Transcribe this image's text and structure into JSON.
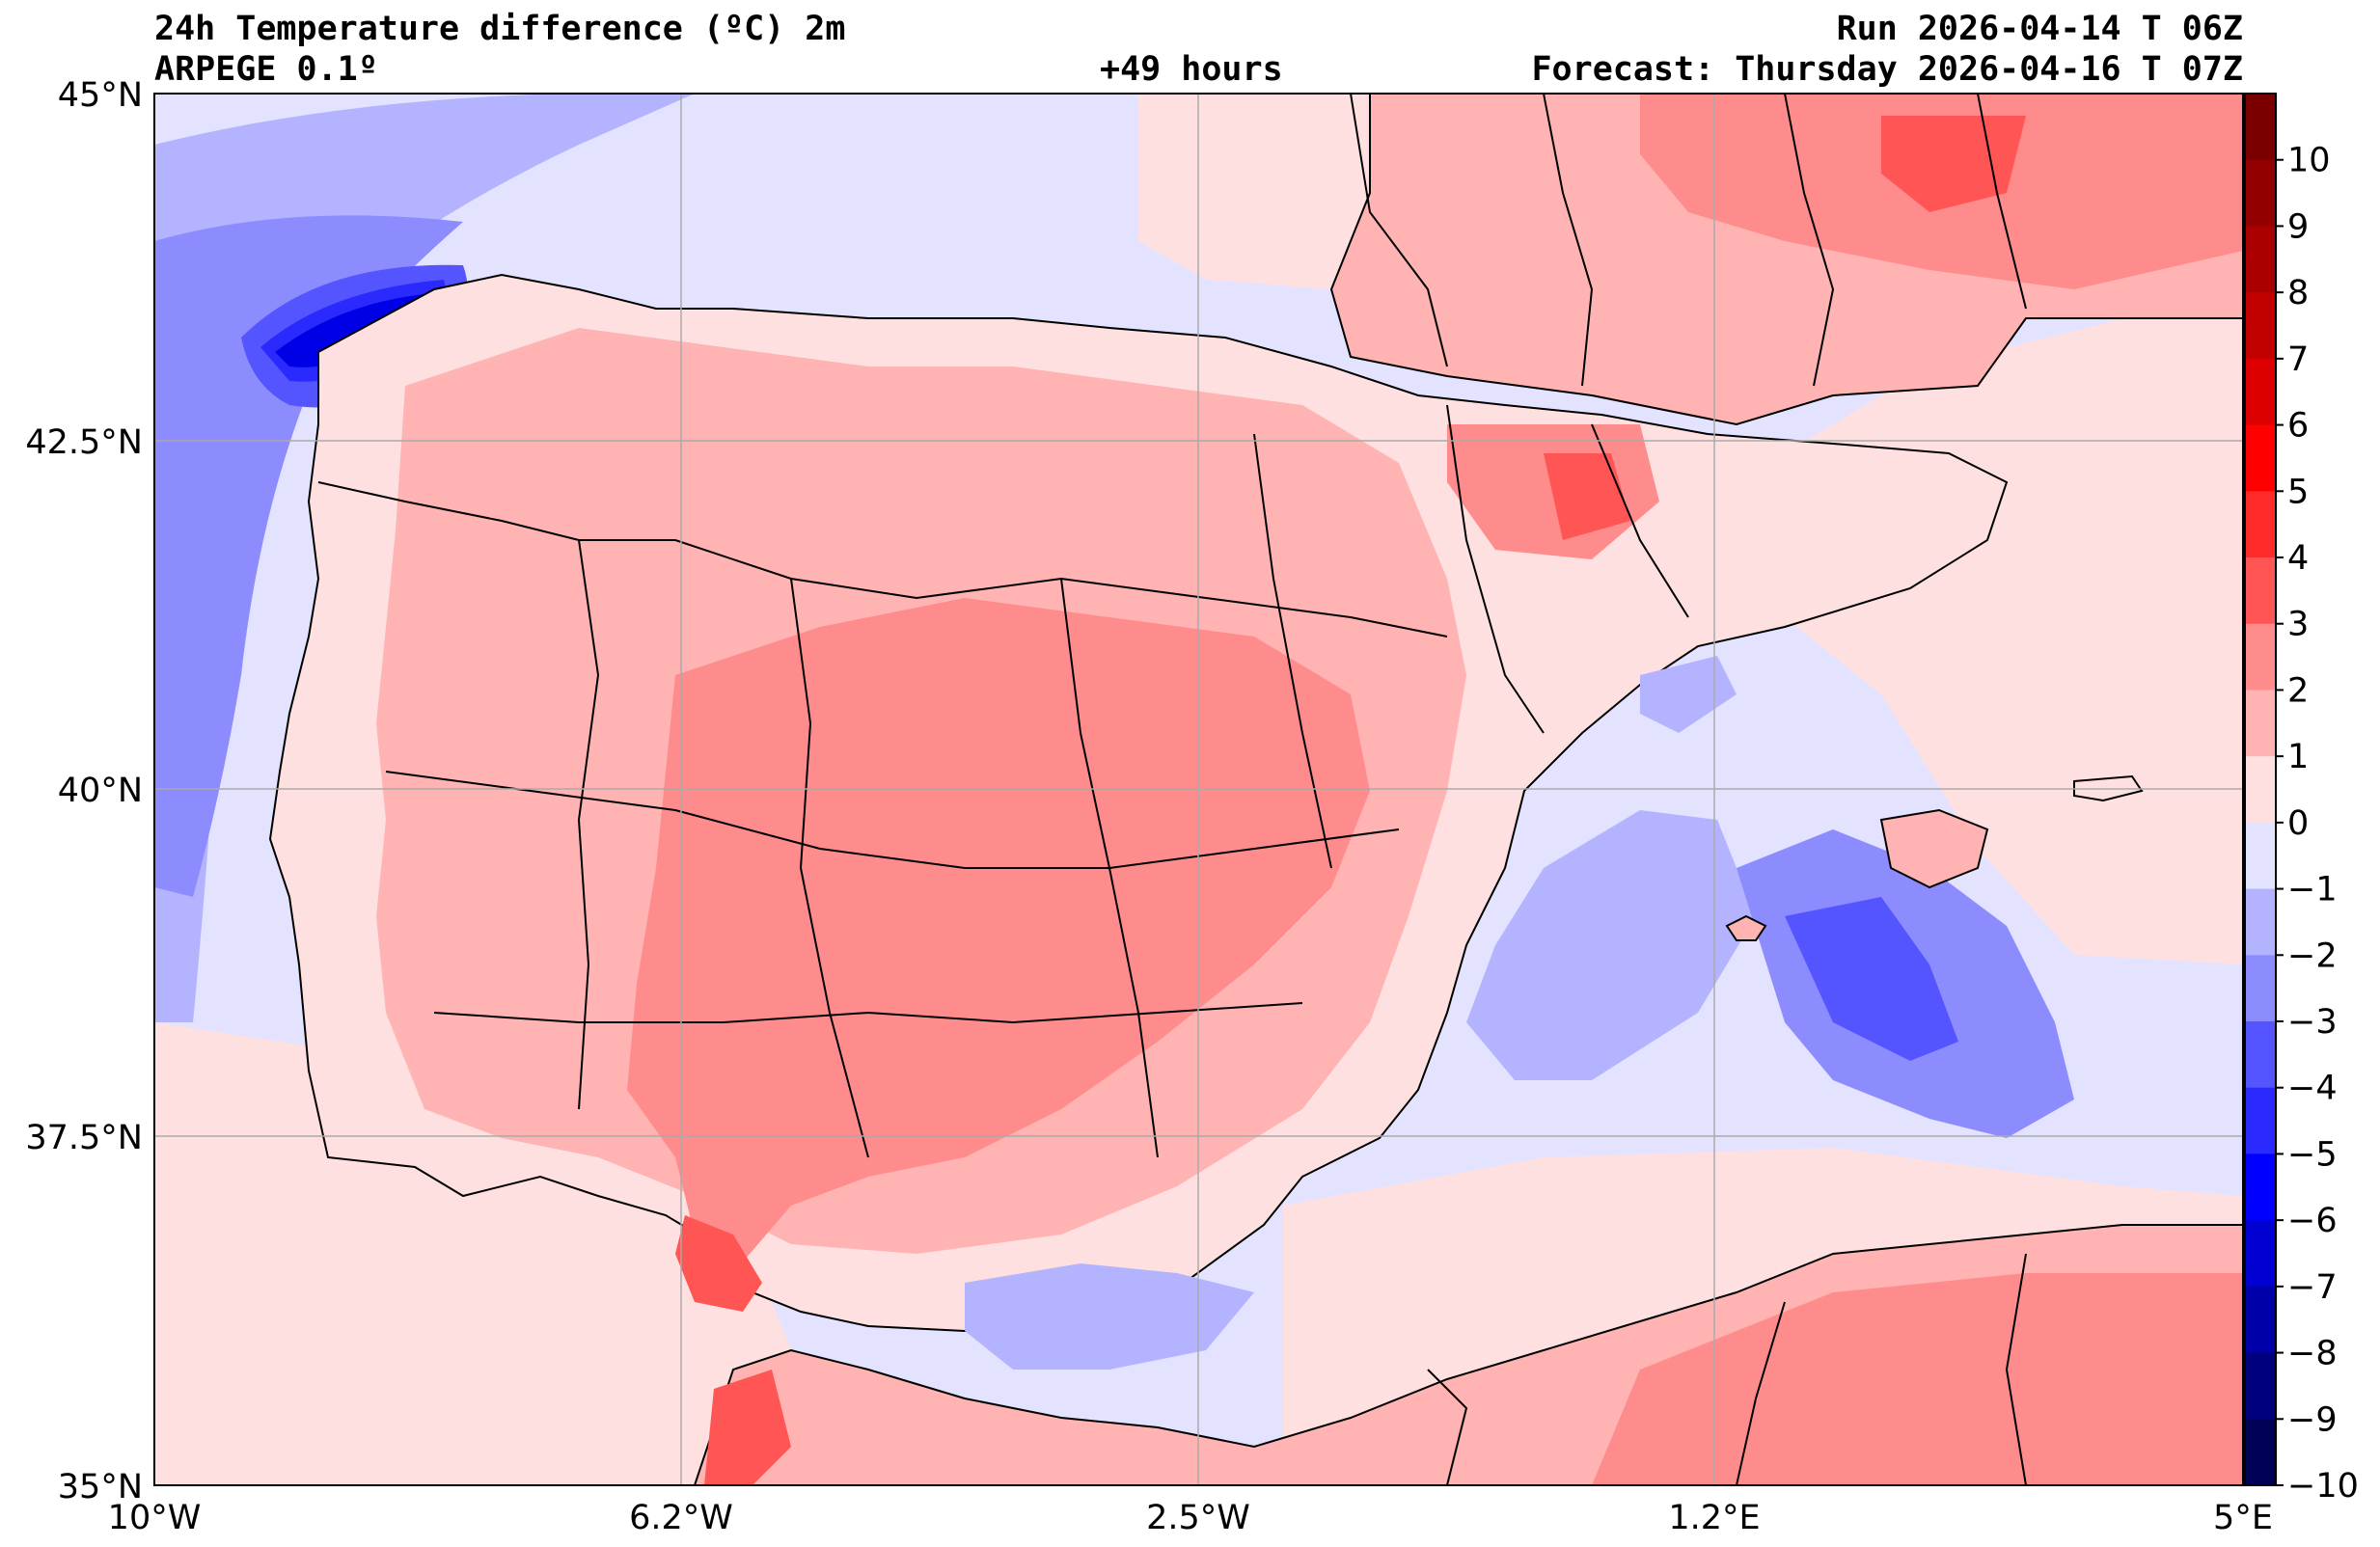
{
  "header": {
    "title": "24h Temperature difference (ºC) 2m",
    "model": "ARPEGE 0.1º",
    "run": "Run 2026-04-14 T 06Z",
    "lead": "+49 hours",
    "forecast": "Forecast: Thursday 2026-04-16 T 07Z"
  },
  "axes": {
    "lat_ticks": [
      "45°N",
      "42.5°N",
      "40°N",
      "37.5°N",
      "35°N"
    ],
    "lon_ticks": [
      "10°W",
      "6.2°W",
      "2.5°W",
      "1.2°E",
      "5°E"
    ]
  },
  "colorbar": {
    "levels": [
      10,
      9,
      8,
      7,
      6,
      5,
      4,
      3,
      2,
      1,
      0,
      -1,
      -2,
      -3,
      -4,
      -5,
      -6,
      -7,
      -8,
      -9,
      -10
    ],
    "labels": [
      "10",
      "9",
      "8",
      "7",
      "6",
      "5",
      "4",
      "3",
      "2",
      "1",
      "0",
      "−1",
      "−2",
      "−3",
      "−4",
      "−5",
      "−6",
      "−7",
      "−8",
      "−9",
      "−10"
    ],
    "colors": [
      "#7a0000",
      "#920000",
      "#aa0000",
      "#c20000",
      "#dc0000",
      "#ff0000",
      "#ff2a2a",
      "#ff5555",
      "#ff8c8c",
      "#ffb3b3",
      "#ffe0e0",
      "#e3e3ff",
      "#b3b3ff",
      "#8c8cff",
      "#5555ff",
      "#2a2aff",
      "#0000ff",
      "#0000d2",
      "#0000a8",
      "#00007e",
      "#000054"
    ]
  },
  "field_colors": {
    "warm1": "#ffe0e0",
    "warm2": "#ffb3b3",
    "warm3": "#ff8c8c",
    "warm4": "#ff5555",
    "warm5": "#ff2a2a",
    "cool1": "#e3e3ff",
    "cool2": "#b3b3ff",
    "cool3": "#8c8cff",
    "cool4": "#5555ff",
    "cool5": "#2a2aff",
    "cool6": "#0000e6"
  }
}
